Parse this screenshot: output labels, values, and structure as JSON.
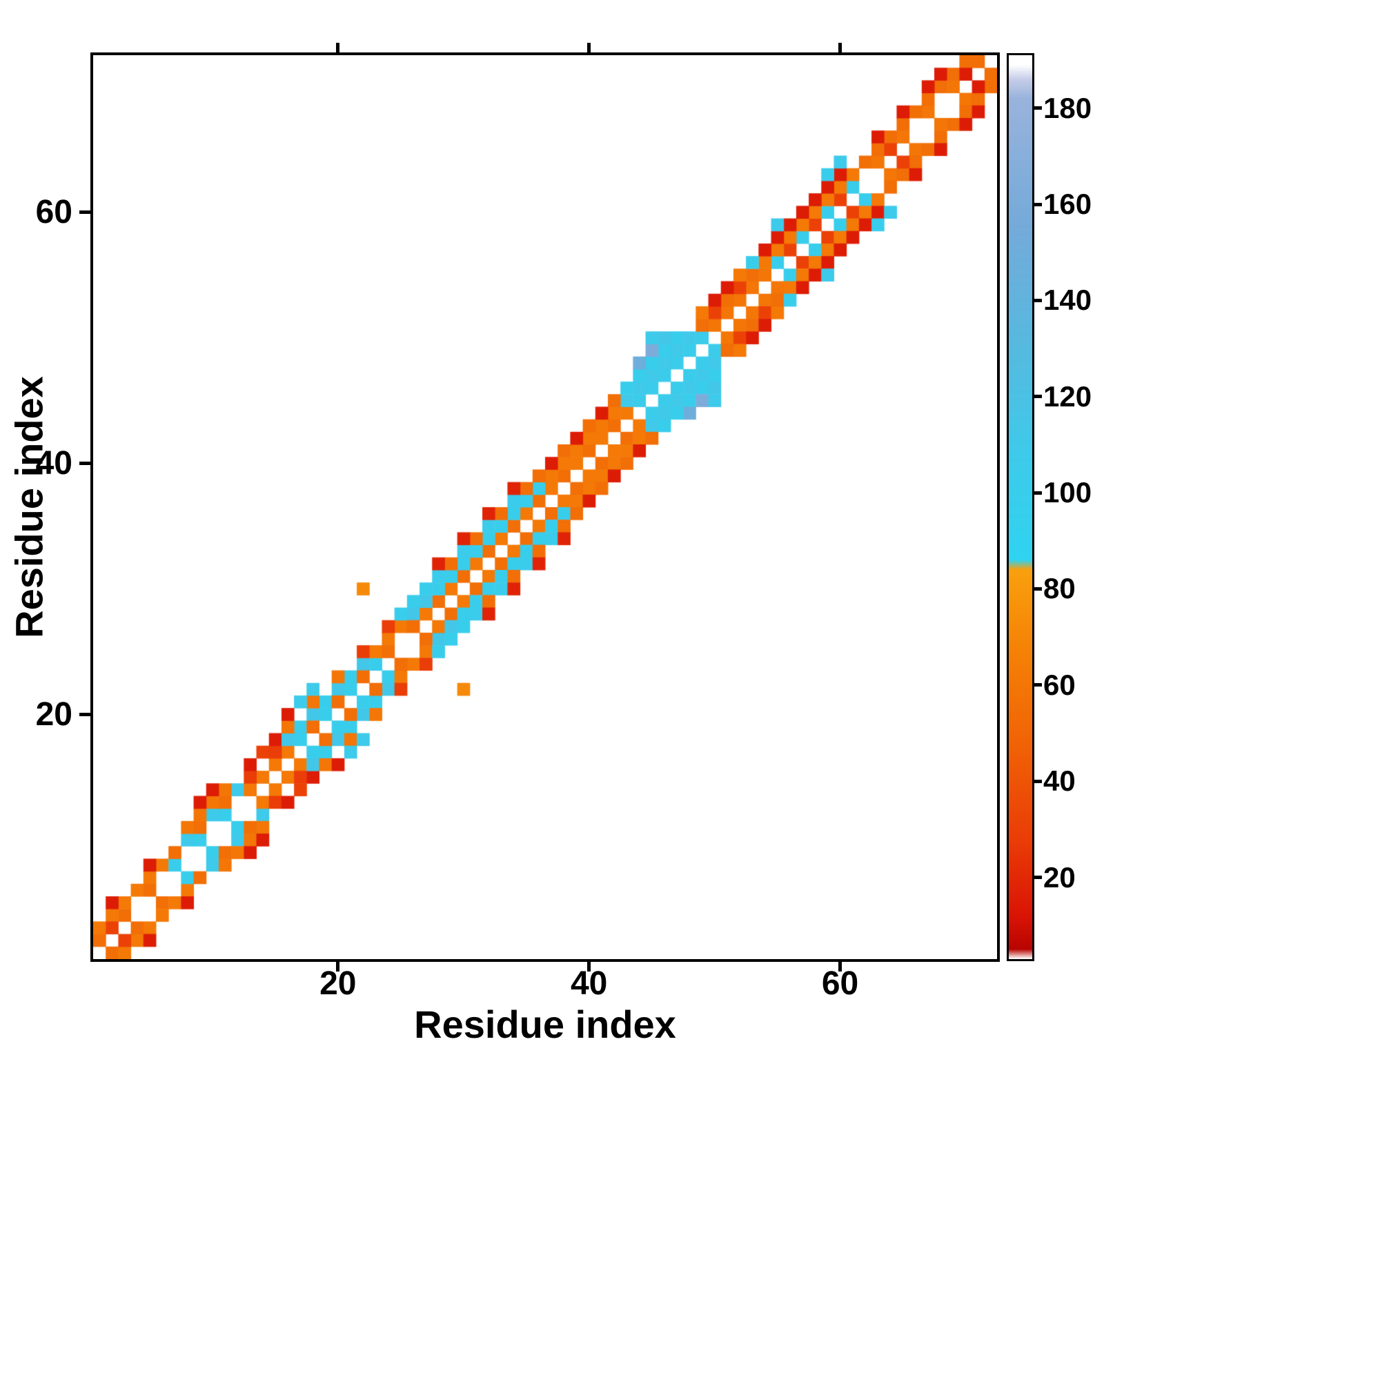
{
  "chart_data": {
    "type": "heatmap",
    "xlabel": "Residue index",
    "ylabel": "Residue index",
    "n_residues": 72,
    "x_ticks": [
      20,
      40,
      60
    ],
    "y_ticks": [
      20,
      40,
      60
    ],
    "symmetric": true,
    "background": "#ffffff",
    "border_color": "#000000",
    "colorbar": {
      "ticks": [
        20,
        40,
        60,
        80,
        100,
        120,
        140,
        160,
        180
      ],
      "vmin": 3,
      "vmax": 191,
      "stops": [
        [
          3,
          "#ffffff"
        ],
        [
          5,
          "#b80400"
        ],
        [
          12,
          "#da1405"
        ],
        [
          28,
          "#ea3d07"
        ],
        [
          48,
          "#f16306"
        ],
        [
          68,
          "#f58306"
        ],
        [
          84,
          "#f9a00e"
        ],
        [
          86,
          "#2fd3f0"
        ],
        [
          108,
          "#3ecaea"
        ],
        [
          132,
          "#58b8de"
        ],
        [
          156,
          "#75aad9"
        ],
        [
          182,
          "#98b3dc"
        ],
        [
          186,
          "#c5cde8"
        ],
        [
          189,
          "#ffffff"
        ],
        [
          191,
          "#ffffff"
        ]
      ]
    },
    "runs_format": "[diagonal_offset, i_start, i_end, value, i_step] ; cell (i, i+offset) mirrored across the diagonal",
    "runs": [
      [
        1,
        1,
        6,
        55,
        2
      ],
      [
        2,
        1,
        6,
        62,
        1
      ],
      [
        3,
        2,
        5,
        15,
        3
      ],
      [
        1,
        2,
        2,
        30,
        1
      ],
      [
        1,
        7,
        12,
        100,
        2
      ],
      [
        2,
        8,
        12,
        108,
        2
      ],
      [
        2,
        7,
        11,
        55,
        2
      ],
      [
        3,
        8,
        11,
        60,
        1
      ],
      [
        4,
        9,
        10,
        15,
        1
      ],
      [
        1,
        13,
        16,
        62,
        1
      ],
      [
        2,
        13,
        15,
        28,
        2
      ],
      [
        3,
        13,
        15,
        15,
        2
      ],
      [
        1,
        17,
        23,
        100,
        2
      ],
      [
        2,
        16,
        22,
        112,
        2
      ],
      [
        2,
        17,
        21,
        100,
        2
      ],
      [
        3,
        16,
        20,
        60,
        2
      ],
      [
        1,
        18,
        22,
        55,
        2
      ],
      [
        2,
        23,
        26,
        62,
        1
      ],
      [
        3,
        22,
        24,
        28,
        2
      ],
      [
        1,
        24,
        26,
        55,
        2
      ],
      [
        1,
        27,
        43,
        62,
        2
      ],
      [
        1,
        28,
        42,
        55,
        2
      ],
      [
        2,
        27,
        36,
        100,
        1
      ],
      [
        3,
        28,
        34,
        103,
        2
      ],
      [
        3,
        27,
        35,
        55,
        2
      ],
      [
        4,
        28,
        34,
        18,
        2
      ],
      [
        2,
        37,
        43,
        62,
        1
      ],
      [
        3,
        36,
        42,
        55,
        2
      ],
      [
        3,
        37,
        41,
        15,
        2
      ],
      [
        1,
        44,
        49,
        103,
        1
      ],
      [
        2,
        43,
        48,
        110,
        1
      ],
      [
        3,
        43,
        47,
        100,
        1
      ],
      [
        4,
        44,
        46,
        112,
        1
      ],
      [
        1,
        50,
        54,
        60,
        1
      ],
      [
        2,
        49,
        53,
        55,
        2
      ],
      [
        2,
        50,
        52,
        30,
        2
      ],
      [
        3,
        49,
        52,
        62,
        3
      ],
      [
        1,
        55,
        62,
        100,
        2
      ],
      [
        1,
        56,
        60,
        30,
        2
      ],
      [
        2,
        54,
        61,
        62,
        1
      ],
      [
        3,
        54,
        60,
        15,
        1
      ],
      [
        1,
        63,
        70,
        60,
        2
      ],
      [
        2,
        62,
        70,
        55,
        1
      ],
      [
        3,
        63,
        67,
        15,
        2
      ],
      [
        1,
        64,
        70,
        30,
        6
      ],
      [
        1,
        71,
        71,
        55,
        1
      ]
    ],
    "cells_format": "[i, j, value] mirrored across the diagonal",
    "cells": [
      [
        14,
        17,
        30
      ],
      [
        15,
        18,
        15
      ],
      [
        16,
        20,
        15
      ],
      [
        17,
        21,
        105
      ],
      [
        18,
        22,
        108
      ],
      [
        25,
        28,
        100
      ],
      [
        26,
        28,
        112
      ],
      [
        26,
        29,
        100
      ],
      [
        27,
        29,
        112
      ],
      [
        27,
        30,
        100
      ],
      [
        22,
        30,
        72
      ],
      [
        44,
        48,
        150
      ],
      [
        45,
        49,
        162
      ],
      [
        45,
        50,
        108
      ],
      [
        46,
        50,
        112
      ],
      [
        50,
        53,
        15
      ],
      [
        51,
        54,
        15
      ],
      [
        53,
        56,
        100
      ],
      [
        55,
        59,
        108
      ],
      [
        59,
        63,
        100
      ],
      [
        60,
        64,
        105
      ],
      [
        68,
        71,
        15
      ],
      [
        70,
        71,
        15
      ]
    ]
  }
}
